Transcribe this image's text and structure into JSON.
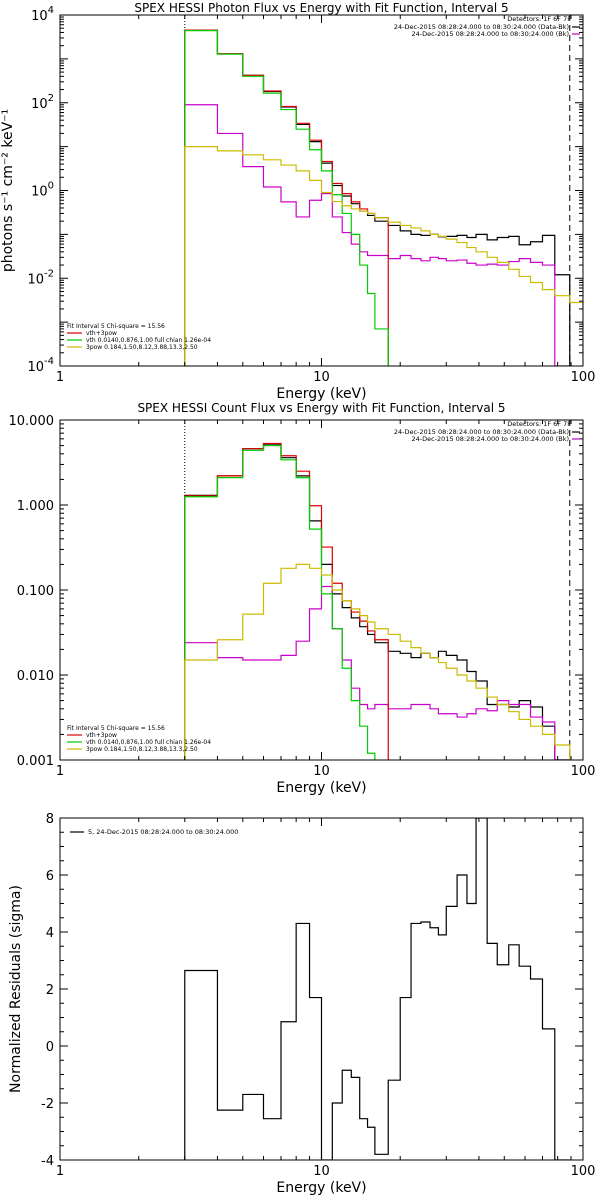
{
  "chart_data": [
    {
      "type": "line",
      "title": "SPEX HESSI Photon Flux vs Energy with Fit Function, Interval 5",
      "xlabel": "Energy (keV)",
      "ylabel": "photons s⁻¹ cm⁻² keV⁻¹",
      "xscale": "log",
      "yscale": "log",
      "xlim": [
        1,
        100
      ],
      "ylim": [
        0.0001,
        10000
      ],
      "xticks": [
        {
          "value": 1,
          "label": "1"
        },
        {
          "value": 10,
          "label": "10"
        },
        {
          "value": 100,
          "label": "100"
        }
      ],
      "yticks": [
        {
          "value": 0.0001,
          "base": "10",
          "exp": "-4"
        },
        {
          "value": 0.01,
          "base": "10",
          "exp": "-2"
        },
        {
          "value": 1,
          "base": "10",
          "exp": "0"
        },
        {
          "value": 100,
          "base": "10",
          "exp": "2"
        },
        {
          "value": 10000,
          "base": "10",
          "exp": "4"
        }
      ],
      "detectors_label": "Detectors: 1F 6F 7F",
      "time_labels": [
        {
          "text": "24-Dec-2015 08:28:24.000 to 08:30:24.000 (Data-Bk)",
          "color": "#000000"
        },
        {
          "text": "24-Dec-2015 08:28:24.000 to 08:30:24.000 (Bk)",
          "color": "#cc00cc"
        }
      ],
      "fit_legend": [
        {
          "text": "Fit Interval 5   Chi-square = 15.56",
          "color": "#000000",
          "line": false
        },
        {
          "text": "vth+3pow",
          "color": "#dd0000",
          "line": true
        },
        {
          "text": "vth 0.0140,0.876,1.00   full chian 1.26e-04",
          "color": "#00cc00",
          "line": true
        },
        {
          "text": "3pow 0.184,1.50,8.12,3.88,13.3,2.50",
          "color": "#ccbb00",
          "line": true
        }
      ],
      "vlines": [
        {
          "x": 3,
          "style": "dotted",
          "color": "#000000"
        },
        {
          "x": 89,
          "style": "dashed",
          "color": "#000000"
        }
      ],
      "series": [
        {
          "role": "data-bk",
          "color": "#000000",
          "style": "step",
          "edges": [
            3,
            4,
            5,
            6,
            7,
            8,
            9,
            10,
            11,
            12,
            13,
            14,
            15,
            16,
            18,
            20,
            22,
            24,
            26,
            28,
            30,
            33,
            36,
            39,
            43,
            47,
            52,
            57,
            63,
            70,
            78,
            89
          ],
          "values": [
            4500,
            1300,
            420,
            180,
            80,
            32,
            13,
            4.2,
            1.3,
            0.75,
            0.5,
            0.34,
            0.27,
            0.2,
            0.16,
            0.12,
            0.1,
            0.095,
            0.1,
            0.088,
            0.09,
            0.095,
            0.085,
            0.1,
            0.075,
            0.085,
            0.09,
            0.058,
            0.068,
            0.095,
            0.012
          ]
        },
        {
          "role": "background",
          "color": "#cc00cc",
          "style": "step",
          "edges": [
            3,
            4,
            5,
            6,
            7,
            8,
            9,
            10,
            11,
            12,
            13,
            14,
            15,
            16,
            18,
            20,
            22,
            24,
            26,
            28,
            30,
            33,
            36,
            39,
            43,
            47,
            52,
            57,
            63,
            70,
            78,
            89
          ],
          "values": [
            90,
            20,
            3.5,
            1.2,
            0.55,
            0.25,
            0.6,
            0.85,
            0.25,
            0.11,
            0.06,
            0.04,
            0.033,
            0.033,
            0.028,
            0.033,
            0.028,
            0.025,
            0.03,
            0.028,
            0.025,
            0.026,
            0.022,
            0.02,
            0.021,
            0.02,
            0.024,
            0.028,
            0.023,
            0.02,
            0.0001
          ]
        },
        {
          "role": "vth+3pow",
          "color": "#dd0000",
          "style": "step",
          "edges": [
            3,
            4,
            5,
            6,
            7,
            8,
            9,
            10,
            11,
            12,
            13,
            14,
            15,
            16,
            18
          ],
          "values": [
            4500,
            1300,
            420,
            185,
            82,
            34,
            14,
            4.6,
            1.45,
            0.85,
            0.55,
            0.38,
            0.3,
            0.24
          ]
        },
        {
          "role": "vth",
          "color": "#00cc00",
          "style": "step",
          "edges": [
            3,
            4,
            5,
            6,
            7,
            8,
            9,
            10,
            11,
            12,
            13,
            14,
            15,
            16,
            18
          ],
          "values": [
            4400,
            1280,
            400,
            165,
            70,
            25,
            8.5,
            2.8,
            0.8,
            0.3,
            0.1,
            0.02,
            0.0045,
            0.0007
          ]
        },
        {
          "role": "3pow",
          "color": "#ccbb00",
          "style": "step",
          "edges": [
            3,
            4,
            5,
            6,
            7,
            8,
            9,
            10,
            11,
            12,
            13,
            14,
            15,
            16,
            18,
            20,
            22,
            24,
            26,
            28,
            30,
            33,
            36,
            39,
            43,
            47,
            52,
            57,
            63,
            70,
            78,
            89,
            100
          ],
          "values": [
            10,
            8,
            6.5,
            5,
            3.8,
            2.8,
            1.7,
            0.9,
            0.56,
            0.45,
            0.38,
            0.34,
            0.3,
            0.24,
            0.19,
            0.16,
            0.14,
            0.12,
            0.1,
            0.09,
            0.078,
            0.065,
            0.05,
            0.04,
            0.03,
            0.023,
            0.016,
            0.011,
            0.008,
            0.0055,
            0.004,
            0.0028
          ]
        }
      ]
    },
    {
      "type": "line",
      "title": "SPEX HESSI Count Flux vs Energy with Fit Function, Interval 5",
      "xlabel": "Energy (keV)",
      "ylabel": "",
      "xscale": "log",
      "yscale": "log",
      "xlim": [
        1,
        100
      ],
      "ylim": [
        0.001,
        10
      ],
      "xticks": [
        {
          "value": 1,
          "label": "1"
        },
        {
          "value": 10,
          "label": "10"
        },
        {
          "value": 100,
          "label": "100"
        }
      ],
      "yticks": [
        {
          "value": 0.001,
          "label": "0.001"
        },
        {
          "value": 0.01,
          "label": "0.010"
        },
        {
          "value": 0.1,
          "label": "0.100"
        },
        {
          "value": 1,
          "label": "1.000"
        },
        {
          "value": 10,
          "label": "10.000"
        }
      ],
      "detectors_label": "Detectors: 1F 6F 7F",
      "time_labels": [
        {
          "text": "24-Dec-2015 08:28:24.000 to 08:30:24.000 (Data-Bk)",
          "color": "#000000"
        },
        {
          "text": "24-Dec-2015 08:28:24.000 to 08:30:24.000 (Bk)",
          "color": "#cc00cc"
        }
      ],
      "fit_legend": [
        {
          "text": "Fit Interval 5   Chi-square = 15.56",
          "color": "#000000",
          "line": false
        },
        {
          "text": "vth+3pow",
          "color": "#dd0000",
          "line": true
        },
        {
          "text": "vth 0.0140,0.876,1.00   full chian 1.26e-04",
          "color": "#00cc00",
          "line": true
        },
        {
          "text": "3pow 0.184,1.50,8.12,3.88,13.3,2.50",
          "color": "#ccbb00",
          "line": true
        }
      ],
      "vlines": [
        {
          "x": 3,
          "style": "dotted",
          "color": "#000000"
        },
        {
          "x": 89,
          "style": "dashed",
          "color": "#000000"
        }
      ],
      "series": [
        {
          "role": "data-bk",
          "color": "#000000",
          "style": "step",
          "edges": [
            3,
            4,
            5,
            6,
            7,
            8,
            9,
            10,
            11,
            12,
            13,
            14,
            15,
            16,
            18,
            20,
            22,
            24,
            26,
            28,
            30,
            33,
            36,
            39,
            43,
            47,
            52,
            57,
            63,
            70,
            78,
            89
          ],
          "values": [
            1.3,
            2.2,
            4.6,
            5.2,
            3.6,
            2.2,
            0.65,
            0.2,
            0.09,
            0.062,
            0.047,
            0.037,
            0.03,
            0.024,
            0.019,
            0.018,
            0.016,
            0.018,
            0.016,
            0.019,
            0.017,
            0.015,
            0.011,
            0.0085,
            0.0045,
            0.0045,
            0.0042,
            0.005,
            0.0042,
            0.0025,
            0.001
          ]
        },
        {
          "role": "background",
          "color": "#cc00cc",
          "style": "step",
          "edges": [
            3,
            4,
            5,
            6,
            7,
            8,
            9,
            10,
            11,
            12,
            13,
            14,
            15,
            16,
            18,
            20,
            22,
            24,
            26,
            28,
            30,
            33,
            36,
            39,
            43,
            47,
            52,
            57,
            63,
            70,
            78,
            89
          ],
          "values": [
            0.024,
            0.016,
            0.015,
            0.015,
            0.017,
            0.025,
            0.06,
            0.11,
            0.035,
            0.015,
            0.007,
            0.0045,
            0.004,
            0.0045,
            0.004,
            0.004,
            0.0045,
            0.0045,
            0.004,
            0.0035,
            0.0035,
            0.0032,
            0.0035,
            0.004,
            0.0038,
            0.005,
            0.0045,
            0.0045,
            0.0032,
            0.0028,
            0.001
          ]
        },
        {
          "role": "vth+3pow",
          "color": "#dd0000",
          "style": "step",
          "edges": [
            3,
            4,
            5,
            6,
            7,
            8,
            9,
            10,
            11,
            12,
            13,
            14,
            15,
            16,
            18
          ],
          "values": [
            1.28,
            2.2,
            4.6,
            5.3,
            3.8,
            2.5,
            0.98,
            0.32,
            0.12,
            0.075,
            0.055,
            0.043,
            0.033,
            0.026
          ]
        },
        {
          "role": "vth",
          "color": "#00cc00",
          "style": "step",
          "edges": [
            3,
            4,
            5,
            6,
            7,
            8,
            9,
            10,
            11,
            12,
            13,
            14,
            15,
            16
          ],
          "values": [
            1.25,
            2.1,
            4.4,
            5.0,
            3.4,
            2.1,
            0.52,
            0.09,
            0.035,
            0.012,
            0.005,
            0.0025,
            0.0012
          ]
        },
        {
          "role": "3pow",
          "color": "#ccbb00",
          "style": "step",
          "edges": [
            3,
            4,
            5,
            6,
            7,
            8,
            9,
            10,
            11,
            12,
            13,
            14,
            15,
            16,
            18,
            20,
            22,
            24,
            26,
            28,
            30,
            33,
            36,
            39,
            43,
            47,
            52,
            57,
            63,
            70,
            78,
            89
          ],
          "values": [
            0.015,
            0.026,
            0.052,
            0.12,
            0.18,
            0.2,
            0.18,
            0.15,
            0.1,
            0.075,
            0.06,
            0.05,
            0.042,
            0.035,
            0.03,
            0.025,
            0.021,
            0.018,
            0.016,
            0.014,
            0.012,
            0.01,
            0.0085,
            0.007,
            0.0055,
            0.0045,
            0.0037,
            0.003,
            0.0025,
            0.002,
            0.0015
          ]
        }
      ]
    },
    {
      "type": "line",
      "title": "",
      "xlabel": "Energy (keV)",
      "ylabel": "Normalized Residuals (sigma)",
      "xscale": "log",
      "yscale": "linear",
      "xlim": [
        1,
        100
      ],
      "ylim": [
        -4,
        8
      ],
      "xticks": [
        {
          "value": 1,
          "label": "1"
        },
        {
          "value": 10,
          "label": "10"
        },
        {
          "value": 100,
          "label": "100"
        }
      ],
      "yticks": [
        {
          "value": -4,
          "label": "-4"
        },
        {
          "value": -2,
          "label": "-2"
        },
        {
          "value": 0,
          "label": "0"
        },
        {
          "value": 2,
          "label": "2"
        },
        {
          "value": 4,
          "label": "4"
        },
        {
          "value": 6,
          "label": "6"
        },
        {
          "value": 8,
          "label": "8"
        }
      ],
      "legend": [
        {
          "text": "5, 24-Dec-2015 08:28:24.000 to 08:30:24.000",
          "color": "#000000"
        }
      ],
      "series": [
        {
          "role": "residuals",
          "color": "#000000",
          "style": "step",
          "edges": [
            3,
            4,
            5,
            6,
            7,
            8,
            9,
            10,
            11,
            12,
            13,
            14,
            15,
            16,
            18,
            20,
            22,
            24,
            26,
            28,
            30,
            33,
            36,
            39,
            43,
            47,
            52,
            57,
            63,
            70,
            78,
            89
          ],
          "values": [
            2.65,
            -2.25,
            -1.7,
            -2.55,
            0.85,
            4.3,
            1.7,
            -4.0,
            -2.0,
            -0.85,
            -1.1,
            -2.55,
            -2.85,
            -3.8,
            -1.2,
            1.7,
            4.3,
            4.35,
            4.15,
            3.9,
            4.9,
            6.0,
            5.0,
            8.1,
            3.6,
            2.85,
            3.55,
            2.8,
            2.35,
            0.6,
            -4.0
          ]
        }
      ]
    }
  ]
}
